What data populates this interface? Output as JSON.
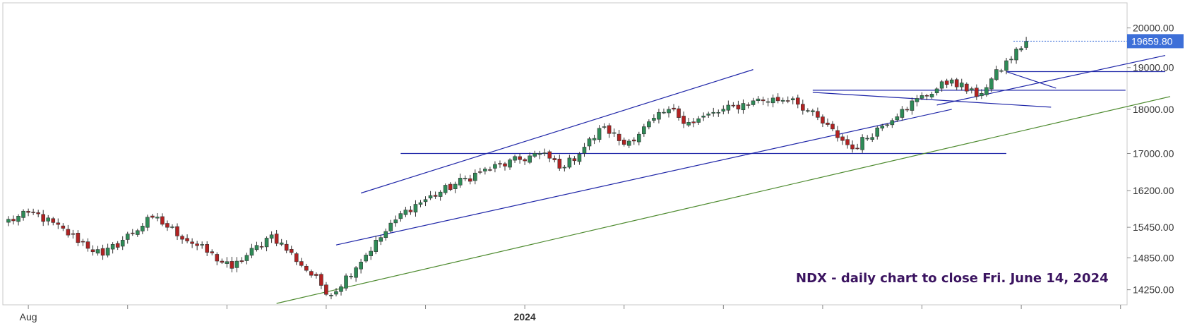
{
  "chart_data": {
    "type": "candlestick",
    "symbol": "NDX",
    "annotation": "NDX - daily chart to close Fri. June 14, 2024",
    "last_price": 19659.8,
    "last_price_label": "19659.80",
    "y_scale": "log",
    "ylim": [
      14000,
      20250
    ],
    "y_ticks": [
      {
        "value": 20000,
        "label": "20000.00"
      },
      {
        "value": 19000,
        "label": "19000.00"
      },
      {
        "value": 18000,
        "label": "18000.00"
      },
      {
        "value": 17000,
        "label": "17000.00"
      },
      {
        "value": 16200,
        "label": "16200.00"
      },
      {
        "value": 15450,
        "label": "15450.00"
      },
      {
        "value": 14850,
        "label": "14850.00"
      },
      {
        "value": 14250,
        "label": "14250.00"
      }
    ],
    "x_labels": [
      {
        "label": "Aug",
        "bar_index": 4
      },
      {
        "label": "2024",
        "bar_index": 104
      }
    ],
    "start_price": 15550,
    "segments": [
      {
        "bars": 6,
        "end": 15750
      },
      {
        "bars": 14,
        "end": 14900
      },
      {
        "bars": 10,
        "end": 15650
      },
      {
        "bars": 16,
        "end": 14650
      },
      {
        "bars": 8,
        "end": 15300
      },
      {
        "bars": 12,
        "end": 14150
      },
      {
        "bars": 15,
        "end": 15800
      },
      {
        "bars": 15,
        "end": 16600
      },
      {
        "bars": 12,
        "end": 17000
      },
      {
        "bars": 5,
        "end": 16700
      },
      {
        "bars": 8,
        "end": 17600
      },
      {
        "bars": 4,
        "end": 17200
      },
      {
        "bars": 9,
        "end": 18000
      },
      {
        "bars": 4,
        "end": 17700
      },
      {
        "bars": 13,
        "end": 18200
      },
      {
        "bars": 8,
        "end": 18250
      },
      {
        "bars": 12,
        "end": 17100
      },
      {
        "bars": 10,
        "end": 18000
      },
      {
        "bars": 10,
        "end": 18700
      },
      {
        "bars": 5,
        "end": 18300
      },
      {
        "bars": 10,
        "end": 19659.8
      }
    ],
    "trendlines": [
      {
        "color": "#1f26a8",
        "from": {
          "i": 71,
          "p": 16150
        },
        "to": {
          "i": 150,
          "p": 18950
        }
      },
      {
        "color": "#1f26a8",
        "from": {
          "i": 66,
          "p": 15100
        },
        "to": {
          "i": 190,
          "p": 18000
        }
      },
      {
        "color": "#1f26a8",
        "from": {
          "i": 79,
          "p": 17000
        },
        "to": {
          "i": 201,
          "p": 17000
        }
      },
      {
        "color": "#1f26a8",
        "from": {
          "i": 162,
          "p": 18450
        },
        "to": {
          "i": 225,
          "p": 18450
        }
      },
      {
        "color": "#1f26a8",
        "from": {
          "i": 162,
          "p": 18400
        },
        "to": {
          "i": 210,
          "p": 18050
        }
      },
      {
        "color": "#1f26a8",
        "from": {
          "i": 187,
          "p": 18100
        },
        "to": {
          "i": 233,
          "p": 19300
        }
      },
      {
        "color": "#1f26a8",
        "from": {
          "i": 201,
          "p": 18900
        },
        "to": {
          "i": 233,
          "p": 18900
        }
      },
      {
        "color": "#1f26a8",
        "from": {
          "i": 201,
          "p": 18900
        },
        "to": {
          "i": 211,
          "p": 18500
        }
      },
      {
        "color": "#4d8a2e",
        "from": {
          "i": 54,
          "p": 14000
        },
        "to": {
          "i": 234,
          "p": 18300
        }
      }
    ],
    "colors": {
      "up": "#2e8b57",
      "down": "#b22222",
      "wick": "#333333",
      "grid_axis": "#c8c8c8",
      "price_tag": "#3d6fd8",
      "annotation": "#3b1460",
      "background": "#ffffff"
    },
    "grid": false
  }
}
